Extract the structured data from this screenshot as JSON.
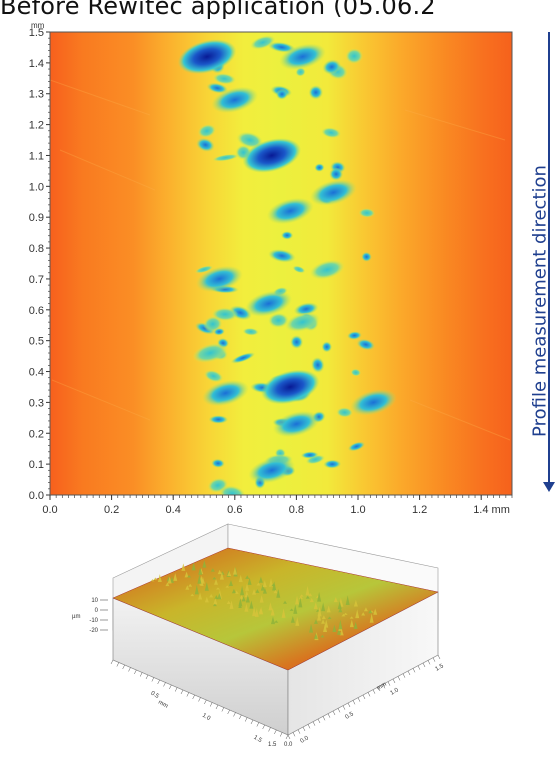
{
  "title": "Before Rewitec application (05.06.2",
  "side_label": "Profile measurement direction",
  "colors": {
    "profile_arrow": "#1f3f8f",
    "map_edge": "#f2641f",
    "map_mid": "#fbb531",
    "map_center": "#f4ef3a",
    "pit_cyan": "#36c7d2",
    "pit_blue": "#1a57c9",
    "pit_deep": "#0a1f9c"
  },
  "chart_data": [
    {
      "type": "heatmap",
      "title": "",
      "xlabel": "",
      "ylabel": "",
      "x_unit": "mm",
      "y_unit": "mm",
      "xlim": [
        0.0,
        1.5
      ],
      "ylim": [
        0.0,
        1.5
      ],
      "x_ticks": [
        "0.0",
        "0.2",
        "0.4",
        "0.6",
        "0.8",
        "1.0",
        "1.2",
        "1.4 mm"
      ],
      "y_ticks": [
        "0.0",
        "0.1",
        "0.2",
        "0.3",
        "0.4",
        "0.5",
        "0.6",
        "0.7",
        "0.8",
        "0.9",
        "1.0",
        "1.1",
        "1.2",
        "1.3",
        "1.4",
        "1.5"
      ],
      "y_ticks_values": [
        0.0,
        0.1,
        0.2,
        0.3,
        0.4,
        0.5,
        0.6,
        0.7,
        0.8,
        0.9,
        1.0,
        1.1,
        1.2,
        1.3,
        1.4,
        1.5
      ],
      "x_ticks_values": [
        0.0,
        0.2,
        0.4,
        0.6,
        0.8,
        1.0,
        1.2,
        1.4
      ],
      "band_center_x": 0.75,
      "pits": [
        {
          "x": 0.51,
          "y": 1.42,
          "depth": "deep"
        },
        {
          "x": 0.82,
          "y": 1.42,
          "depth": "mid"
        },
        {
          "x": 0.6,
          "y": 1.28,
          "depth": "mid"
        },
        {
          "x": 0.72,
          "y": 1.1,
          "depth": "deep"
        },
        {
          "x": 0.92,
          "y": 0.98,
          "depth": "mid"
        },
        {
          "x": 0.78,
          "y": 0.92,
          "depth": "mid"
        },
        {
          "x": 0.55,
          "y": 0.7,
          "depth": "mid"
        },
        {
          "x": 0.9,
          "y": 0.73,
          "depth": "shallow"
        },
        {
          "x": 0.71,
          "y": 0.62,
          "depth": "mid"
        },
        {
          "x": 0.82,
          "y": 0.56,
          "depth": "shallow"
        },
        {
          "x": 0.52,
          "y": 0.46,
          "depth": "shallow"
        },
        {
          "x": 0.78,
          "y": 0.35,
          "depth": "deep"
        },
        {
          "x": 0.57,
          "y": 0.33,
          "depth": "mid"
        },
        {
          "x": 1.05,
          "y": 0.3,
          "depth": "mid"
        },
        {
          "x": 0.8,
          "y": 0.23,
          "depth": "mid"
        },
        {
          "x": 0.72,
          "y": 0.08,
          "depth": "mid"
        }
      ]
    },
    {
      "type": "area",
      "title": "",
      "z_unit": "µm",
      "xy_unit": "mm",
      "z_ticks": [
        "10",
        "0",
        "-10",
        "-20"
      ],
      "left_axis_ticks": [
        "0.5",
        "1.0",
        "1.5"
      ],
      "right_axis_ticks": [
        "0.0",
        "0.5",
        "1.0",
        "1.5"
      ],
      "corner_labels": [
        "1.5",
        "0.0"
      ]
    }
  ]
}
